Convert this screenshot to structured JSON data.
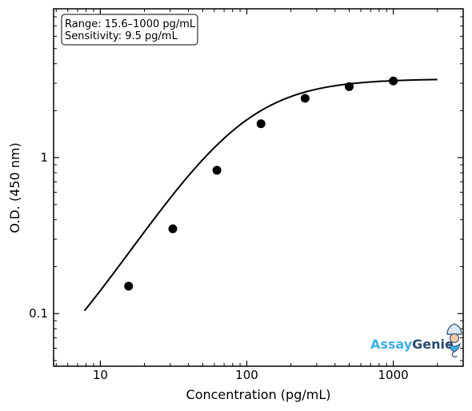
{
  "chart_data": {
    "type": "scatter",
    "title": "",
    "xlabel": "Concentration (pg/mL)",
    "ylabel": "O.D. (450 nm)",
    "xscale": "log",
    "yscale": "log",
    "xlim": [
      4.8,
      3000
    ],
    "ylim": [
      0.046,
      9.0
    ],
    "grid": false,
    "x_ticks": [
      10,
      100,
      1000
    ],
    "x_tick_labels": [
      "10",
      "100",
      "1000"
    ],
    "y_ticks": [
      0.1,
      1
    ],
    "y_tick_labels": [
      "0.1",
      "1"
    ],
    "points": {
      "x": [
        15.6,
        31.25,
        62.5,
        125,
        250,
        500,
        1000
      ],
      "y": [
        0.15,
        0.35,
        0.83,
        1.65,
        2.4,
        2.85,
        3.1
      ]
    },
    "fit_curve": {
      "model": "4PL",
      "A": 0.02,
      "B": 1.48,
      "C": 89,
      "D": 3.2,
      "x_range": [
        7.8,
        2000
      ]
    },
    "annotation_lines": [
      "Range: 15.6–1000 pg/mL",
      "Sensitivity: 9.5 pg/mL"
    ],
    "logo_text": [
      "Assay",
      "Genie"
    ]
  }
}
